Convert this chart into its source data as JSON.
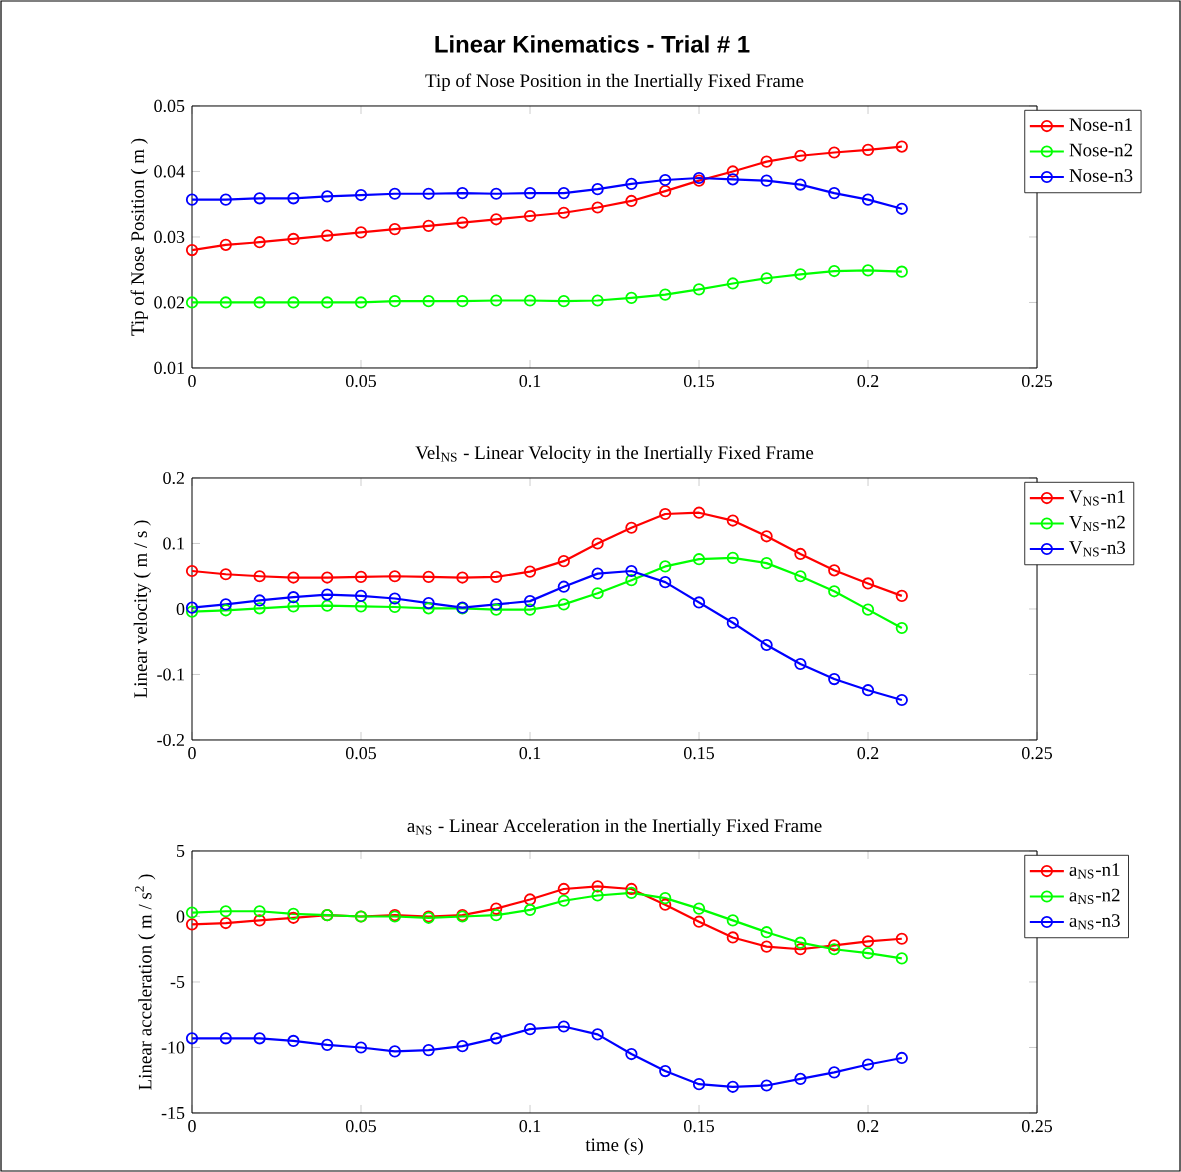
{
  "chart_data": [
    {
      "type": "line",
      "title": "Linear Kinematics - Trial # 1",
      "subtitle": "Tip of Nose Position in the Inertially Fixed Frame",
      "ylabel": "Tip of Nose Position ( m )",
      "x": [
        0,
        0.01,
        0.02,
        0.03,
        0.04,
        0.05,
        0.06,
        0.07,
        0.08,
        0.09,
        0.1,
        0.11,
        0.12,
        0.13,
        0.14,
        0.15,
        0.16,
        0.17,
        0.18,
        0.19,
        0.2,
        0.21
      ],
      "series": [
        {
          "name": "Nose-n1",
          "color": "#ff0000",
          "values": [
            0.028,
            0.0288,
            0.0292,
            0.0297,
            0.0302,
            0.0307,
            0.0312,
            0.0317,
            0.0322,
            0.0327,
            0.0332,
            0.0337,
            0.0345,
            0.0355,
            0.037,
            0.0386,
            0.04,
            0.0415,
            0.0424,
            0.0429,
            0.0433,
            0.0438
          ]
        },
        {
          "name": "Nose-n2",
          "color": "#00ff00",
          "values": [
            0.02,
            0.02,
            0.02,
            0.02,
            0.02,
            0.02,
            0.0202,
            0.0202,
            0.0202,
            0.0203,
            0.0203,
            0.0202,
            0.0203,
            0.0207,
            0.0212,
            0.022,
            0.0229,
            0.0237,
            0.0243,
            0.0248,
            0.0249,
            0.0247
          ]
        },
        {
          "name": "Nose-n3",
          "color": "#0000ff",
          "values": [
            0.0357,
            0.0357,
            0.0359,
            0.0359,
            0.0362,
            0.0364,
            0.0366,
            0.0366,
            0.0367,
            0.0366,
            0.0367,
            0.0367,
            0.0373,
            0.0381,
            0.0387,
            0.039,
            0.0388,
            0.0386,
            0.038,
            0.0367,
            0.0357,
            0.0343
          ]
        }
      ],
      "xlim": [
        0,
        0.25
      ],
      "ylim": [
        0.01,
        0.05
      ],
      "xticks": [
        0,
        0.05,
        0.1,
        0.15,
        0.2,
        0.25
      ],
      "yticks": [
        0.01,
        0.02,
        0.03,
        0.04,
        0.05
      ],
      "legend": "top right",
      "marker": "circle",
      "grid": false
    },
    {
      "type": "line",
      "title": "Vel$_{NS}$ - Linear Velocity in the Inertially Fixed Frame",
      "ylabel": "Linear velocity ( m / s )",
      "x": [
        0,
        0.01,
        0.02,
        0.03,
        0.04,
        0.05,
        0.06,
        0.07,
        0.08,
        0.09,
        0.1,
        0.11,
        0.12,
        0.13,
        0.14,
        0.15,
        0.16,
        0.17,
        0.18,
        0.19,
        0.2,
        0.21
      ],
      "series": [
        {
          "name": "V$_{NS}$-n1",
          "color": "#ff0000",
          "values": [
            0.058,
            0.053,
            0.05,
            0.048,
            0.048,
            0.049,
            0.05,
            0.049,
            0.048,
            0.049,
            0.057,
            0.073,
            0.1,
            0.124,
            0.145,
            0.147,
            0.135,
            0.111,
            0.084,
            0.059,
            0.039,
            0.02
          ]
        },
        {
          "name": "V$_{NS}$-n2",
          "color": "#00ff00",
          "values": [
            -0.004,
            -0.002,
            0.001,
            0.004,
            0.005,
            0.004,
            0.003,
            0.001,
            0.001,
            -0.001,
            -0.001,
            0.007,
            0.024,
            0.044,
            0.065,
            0.076,
            0.078,
            0.07,
            0.05,
            0.027,
            -0.001,
            -0.029
          ]
        },
        {
          "name": "V$_{NS}$-n3",
          "color": "#0000ff",
          "values": [
            0.002,
            0.007,
            0.013,
            0.018,
            0.022,
            0.02,
            0.016,
            0.009,
            0.002,
            0.007,
            0.012,
            0.034,
            0.054,
            0.058,
            0.041,
            0.01,
            -0.021,
            -0.055,
            -0.084,
            -0.107,
            -0.124,
            -0.139
          ]
        }
      ],
      "xlim": [
        0,
        0.25
      ],
      "ylim": [
        -0.2,
        0.2
      ],
      "xticks": [
        0,
        0.05,
        0.1,
        0.15,
        0.2,
        0.25
      ],
      "yticks": [
        -0.2,
        -0.1,
        0,
        0.1,
        0.2
      ],
      "legend": "top right",
      "marker": "circle",
      "grid": false
    },
    {
      "type": "line",
      "title": "a$_{NS}$ - Linear Acceleration in the Inertially Fixed Frame",
      "ylabel": "Linear acceleration ( m / s$^{2}$ )",
      "xlabel": "time (s)",
      "x": [
        0,
        0.01,
        0.02,
        0.03,
        0.04,
        0.05,
        0.06,
        0.07,
        0.08,
        0.09,
        0.1,
        0.11,
        0.12,
        0.13,
        0.14,
        0.15,
        0.16,
        0.17,
        0.18,
        0.19,
        0.2,
        0.21
      ],
      "series": [
        {
          "name": "a$_{NS}$-n1",
          "color": "#ff0000",
          "values": [
            -0.6,
            -0.5,
            -0.3,
            -0.1,
            0.1,
            0,
            0.1,
            0,
            0.1,
            0.6,
            1.3,
            2.1,
            2.3,
            2.1,
            0.9,
            -0.4,
            -1.6,
            -2.3,
            -2.5,
            -2.2,
            -1.9,
            -1.7
          ]
        },
        {
          "name": "a$_{NS}$-n2",
          "color": "#00ff00",
          "values": [
            0.3,
            0.4,
            0.4,
            0.2,
            0.1,
            0,
            0,
            -0.1,
            0,
            0.1,
            0.5,
            1.2,
            1.6,
            1.8,
            1.4,
            0.6,
            -0.3,
            -1.2,
            -2,
            -2.5,
            -2.8,
            -3.2
          ]
        },
        {
          "name": "a$_{NS}$-n3",
          "color": "#0000ff",
          "values": [
            -9.3,
            -9.3,
            -9.3,
            -9.5,
            -9.8,
            -10,
            -10.3,
            -10.2,
            -9.9,
            -9.3,
            -8.6,
            -8.4,
            -9,
            -10.5,
            -11.8,
            -12.8,
            -13,
            -12.9,
            -12.4,
            -11.9,
            -11.3,
            -10.8
          ]
        }
      ],
      "xlim": [
        0,
        0.25
      ],
      "ylim": [
        -15,
        5
      ],
      "xticks": [
        0,
        0.05,
        0.1,
        0.15,
        0.2,
        0.25
      ],
      "yticks": [
        -15,
        -10,
        -5,
        0,
        5
      ],
      "legend": "top right",
      "marker": "circle",
      "grid": false
    }
  ]
}
